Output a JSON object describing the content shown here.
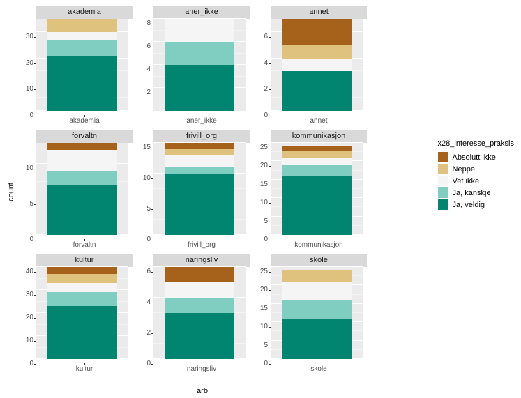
{
  "ylabel": "count",
  "xlabel": "arb",
  "legend": {
    "title": "x28_interesse_praksis",
    "items": [
      {
        "label": "Absolutt ikke",
        "color": "#a6611a"
      },
      {
        "label": "Neppe",
        "color": "#dfc27d"
      },
      {
        "label": "Vet ikke",
        "color": "#f5f5f5"
      },
      {
        "label": "Ja, kanskje",
        "color": "#80cdc1"
      },
      {
        "label": "Ja, veldig",
        "color": "#018571"
      }
    ]
  },
  "colors": {
    "absolutt_ikke": "#a6611a",
    "neppe": "#dfc27d",
    "vet_ikke": "#f5f5f5",
    "ja_kanskje": "#80cdc1",
    "ja_veldig": "#018571",
    "panel_bg": "#ebebeb",
    "grid": "#ffffff",
    "strip_bg": "#d9d9d9"
  },
  "facets": [
    {
      "name": "akademia",
      "xcat": "akademia",
      "ymax": 35,
      "yticks": [
        0,
        10,
        20,
        30
      ],
      "stack": {
        "ja_veldig": 21,
        "ja_kanskje": 6,
        "vet_ikke": 3,
        "neppe": 5,
        "absolutt_ikke": 0
      }
    },
    {
      "name": "aner_ikke",
      "xcat": "aner_ikke",
      "ymax": 8,
      "yticks": [
        2,
        4,
        6,
        8
      ],
      "stack": {
        "ja_veldig": 4,
        "ja_kanskje": 2,
        "vet_ikke": 2,
        "neppe": 0,
        "absolutt_ikke": 0
      }
    },
    {
      "name": "annet",
      "xcat": "annet",
      "ymax": 7,
      "yticks": [
        0,
        2,
        4,
        6
      ],
      "stack": {
        "ja_veldig": 3,
        "ja_kanskje": 0,
        "vet_ikke": 1,
        "neppe": 1,
        "absolutt_ikke": 2
      }
    },
    {
      "name": "forvaltn",
      "xcat": "forvaltn",
      "ymax": 13,
      "yticks": [
        0,
        5,
        10
      ],
      "stack": {
        "ja_veldig": 7,
        "ja_kanskje": 2,
        "vet_ikke": 3,
        "neppe": 0,
        "absolutt_ikke": 1
      }
    },
    {
      "name": "frivill_org",
      "xcat": "frivill_org",
      "ymax": 15,
      "yticks": [
        0,
        5,
        10,
        15
      ],
      "stack": {
        "ja_veldig": 10,
        "ja_kanskje": 1,
        "vet_ikke": 2,
        "neppe": 1,
        "absolutt_ikke": 1
      }
    },
    {
      "name": "kommunikasjon",
      "xcat": "kommunikasjon",
      "ymax": 25,
      "yticks": [
        0,
        5,
        10,
        15,
        20,
        25
      ],
      "stack": {
        "ja_veldig": 16,
        "ja_kanskje": 3,
        "vet_ikke": 2,
        "neppe": 2,
        "absolutt_ikke": 1
      }
    },
    {
      "name": "kultur",
      "xcat": "kultur",
      "ymax": 40,
      "yticks": [
        0,
        10,
        20,
        30,
        40
      ],
      "stack": {
        "ja_veldig": 23,
        "ja_kanskje": 6,
        "vet_ikke": 4,
        "neppe": 4,
        "absolutt_ikke": 3
      }
    },
    {
      "name": "naringsliv",
      "xcat": "naringsliv",
      "ymax": 6,
      "yticks": [
        0,
        2,
        4,
        6
      ],
      "stack": {
        "ja_veldig": 3,
        "ja_kanskje": 1,
        "vet_ikke": 1,
        "neppe": 0,
        "absolutt_ikke": 1
      }
    },
    {
      "name": "skole",
      "xcat": "skole",
      "ymax": 25,
      "yticks": [
        0,
        5,
        10,
        15,
        20,
        25
      ],
      "stack": {
        "ja_veldig": 11,
        "ja_kanskje": 5,
        "vet_ikke": 5,
        "neppe": 3,
        "absolutt_ikke": 0
      }
    }
  ]
}
